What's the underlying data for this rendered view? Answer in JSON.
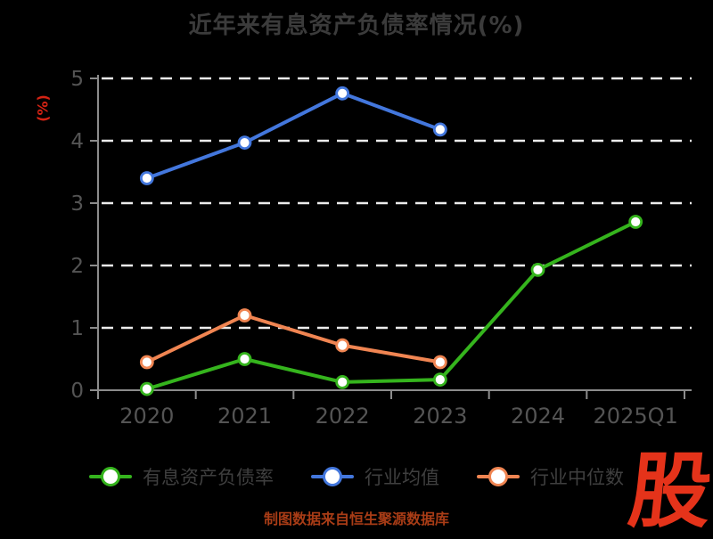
{
  "chart_data": {
    "type": "line",
    "title": "近年来有息资产负债率情况(%)",
    "ylabel": "(%)",
    "xlabel": "",
    "categories": [
      "2020",
      "2021",
      "2022",
      "2023",
      "2024",
      "2025Q1"
    ],
    "series": [
      {
        "name": "有息资产负债率",
        "color": "#35b41d",
        "values": [
          0.02,
          0.5,
          0.13,
          0.17,
          1.93,
          2.7
        ]
      },
      {
        "name": "行业均值",
        "color": "#4377dd",
        "values": [
          3.4,
          3.97,
          4.76,
          4.18,
          null,
          null
        ]
      },
      {
        "name": "行业中位数",
        "color": "#f08552",
        "values": [
          0.45,
          1.2,
          0.72,
          0.45,
          null,
          null
        ]
      }
    ],
    "ylim": [
      0,
      5
    ],
    "yticks": [
      0,
      1,
      2,
      3,
      4,
      5
    ],
    "grid": true,
    "grid_style": "dashed",
    "legend_position": "bottom",
    "marker": "circle-white-fill"
  },
  "colors": {
    "background": "#000000",
    "title": "#3b3b3b",
    "tick_label": "#545454",
    "legend_text": "#3f3f3f",
    "axis": "#8c8c8c",
    "grid": "#ececec",
    "ylabel": "#d42314",
    "caption": "#a83c16",
    "logo": "#e5331a",
    "marker_fill": "#ffffff"
  },
  "footer": {
    "caption": "制图数据来自恒生聚源数据库"
  },
  "logo": {
    "text": "股"
  }
}
